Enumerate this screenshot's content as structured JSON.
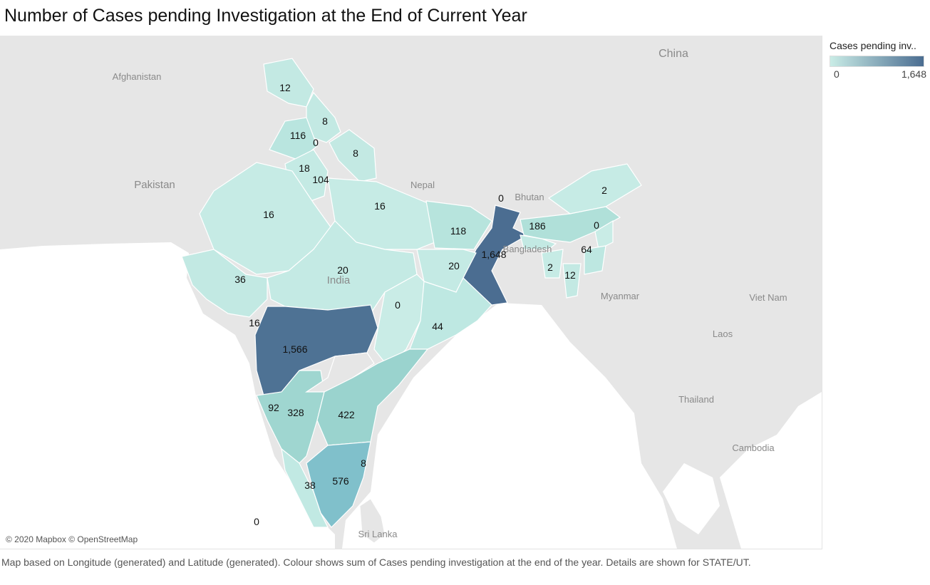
{
  "title": "Number of Cases pending Investigation at the End of Current Year",
  "legend": {
    "title": "Cases pending inv..",
    "min": "0",
    "max": "1,648"
  },
  "copyright": "© 2020 Mapbox © OpenStreetMap",
  "caption": "Map based on Longitude (generated) and Latitude (generated).  Colour shows sum of Cases pending investigation at the end of the year.  Details are shown for STATE/UT.",
  "countries": {
    "china": "China",
    "afghanistan": "Afghanistan",
    "pakistan": "Pakistan",
    "nepal": "Nepal",
    "bhutan": "Bhutan",
    "bangladesh": "Bangladesh",
    "india": "India",
    "myanmar": "Myanmar",
    "vietnam": "Viet Nam",
    "laos": "Laos",
    "thailand": "Thailand",
    "cambodia": "Cambodia",
    "srilanka": "Sri Lanka"
  },
  "colors": {
    "low": "#c9ece6",
    "high": "#4b6d91",
    "land": "#e6e6e6",
    "sea": "#ffffff"
  },
  "state_values": [
    "12",
    "8",
    "116",
    "0",
    "8",
    "18",
    "104",
    "16",
    "16",
    "0",
    "118",
    "186",
    "2",
    "0",
    "64",
    "1,648",
    "2",
    "12",
    "36",
    "20",
    "20",
    "0",
    "44",
    "16",
    "1,566",
    "92",
    "328",
    "422",
    "8",
    "576",
    "38",
    "0"
  ]
}
